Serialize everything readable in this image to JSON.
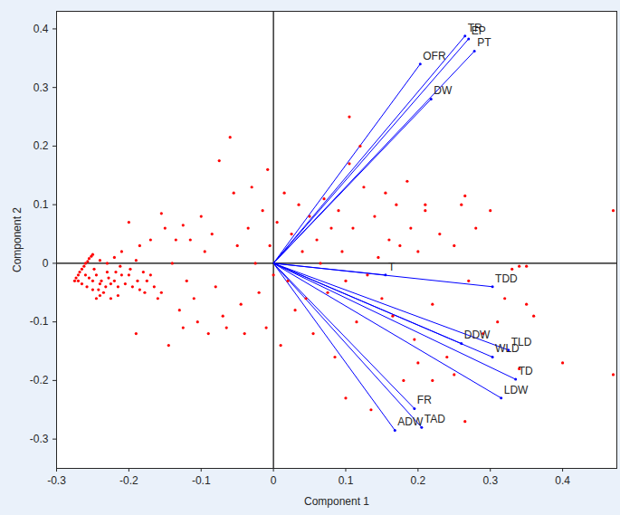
{
  "chart_data": {
    "type": "biplot",
    "xlabel": "Component 1",
    "ylabel": "Component 2",
    "xlim": [
      -0.3,
      0.475
    ],
    "ylim": [
      -0.35,
      0.43
    ],
    "xticks": [
      -0.3,
      -0.2,
      -0.1,
      0,
      0.1,
      0.2,
      0.3,
      0.4
    ],
    "yticks": [
      -0.3,
      -0.2,
      -0.1,
      0,
      0.1,
      0.2,
      0.3,
      0.4
    ],
    "grid": true,
    "points": {
      "color": "#ff0000",
      "x": [
        -0.275,
        -0.273,
        -0.27,
        -0.268,
        -0.265,
        -0.262,
        -0.26,
        -0.257,
        -0.255,
        -0.252,
        -0.25,
        -0.26,
        -0.255,
        -0.25,
        -0.245,
        -0.248,
        -0.24,
        -0.242,
        -0.235,
        -0.238,
        -0.232,
        -0.228,
        -0.225,
        -0.22,
        -0.218,
        -0.215,
        -0.212,
        -0.21,
        -0.205,
        -0.2,
        -0.198,
        -0.195,
        -0.19,
        -0.188,
        -0.185,
        -0.18,
        -0.178,
        -0.175,
        -0.17,
        -0.165,
        -0.245,
        -0.24,
        -0.225,
        -0.215,
        -0.23,
        -0.265,
        -0.27,
        -0.258,
        -0.25,
        -0.24,
        -0.23,
        -0.22,
        -0.21,
        -0.2,
        -0.19,
        -0.185,
        -0.17,
        -0.16,
        -0.135,
        -0.125,
        -0.125,
        -0.155,
        -0.15,
        -0.155,
        -0.145,
        -0.14,
        -0.13,
        -0.12,
        -0.115,
        -0.11,
        -0.105,
        -0.1,
        -0.095,
        -0.09,
        -0.085,
        -0.08,
        -0.075,
        -0.07,
        -0.065,
        -0.06,
        -0.055,
        -0.05,
        -0.045,
        -0.04,
        -0.035,
        -0.03,
        -0.025,
        -0.02,
        -0.015,
        -0.01,
        -0.008,
        -0.005,
        0.0,
        0.005,
        0.01,
        0.015,
        0.02,
        0.025,
        0.03,
        0.035,
        0.04,
        0.045,
        0.05,
        0.055,
        0.06,
        0.065,
        0.07,
        0.075,
        0.08,
        0.085,
        0.09,
        0.095,
        0.1,
        0.105,
        0.11,
        0.115,
        0.12,
        0.125,
        0.13,
        0.135,
        0.14,
        0.145,
        0.15,
        0.155,
        0.16,
        0.165,
        0.17,
        0.175,
        0.18,
        0.185,
        0.19,
        0.195,
        0.2,
        0.21,
        0.22,
        0.23,
        0.24,
        0.25,
        0.26,
        0.27,
        0.28,
        0.29,
        0.3,
        0.31,
        0.32,
        0.33,
        0.34,
        0.35,
        0.36,
        0.4,
        0.47,
        0.47,
        0.105,
        0.1,
        0.265,
        0.25,
        0.22,
        0.2,
        0.21,
        0.265,
        0.35,
        0.34
      ],
      "y": [
        -0.03,
        -0.025,
        -0.02,
        -0.015,
        -0.01,
        -0.005,
        0,
        0.003,
        0.008,
        0.012,
        0.015,
        -0.02,
        -0.025,
        -0.03,
        -0.02,
        -0.01,
        -0.035,
        -0.045,
        -0.05,
        -0.03,
        -0.04,
        -0.025,
        -0.035,
        -0.03,
        -0.015,
        -0.04,
        -0.005,
        -0.02,
        -0.035,
        -0.02,
        -0.01,
        -0.04,
        0.005,
        -0.03,
        -0.045,
        -0.015,
        -0.05,
        -0.03,
        -0.02,
        -0.04,
        -0.06,
        -0.055,
        -0.06,
        -0.055,
        -0.015,
        -0.035,
        -0.03,
        -0.04,
        -0.045,
        0.005,
        0.0,
        0.01,
        0.02,
        0.07,
        -0.12,
        0.03,
        0.04,
        -0.06,
        0.04,
        0.065,
        -0.11,
        0.085,
        0.06,
        -0.05,
        -0.14,
        0.0,
        -0.08,
        -0.03,
        0.04,
        -0.06,
        -0.1,
        0.08,
        0.02,
        -0.12,
        0.05,
        -0.04,
        0.175,
        -0.09,
        -0.11,
        0.215,
        0.12,
        0.03,
        -0.07,
        -0.12,
        0.06,
        0.13,
        0.0,
        -0.05,
        0.09,
        -0.11,
        0.16,
        0.03,
        -0.02,
        0.07,
        -0.14,
        0.12,
        -0.03,
        0.05,
        -0.08,
        0.1,
        0.02,
        -0.06,
        0.08,
        -0.12,
        0.04,
        0.0,
        0.11,
        -0.05,
        0.06,
        -0.16,
        0.09,
        0.02,
        -0.03,
        0.17,
        0.06,
        -0.1,
        0.2,
        0.13,
        -0.02,
        -0.25,
        0.08,
        0.01,
        -0.06,
        0.12,
        0.04,
        -0.09,
        0.1,
        0.03,
        -0.2,
        0.14,
        0.06,
        -0.13,
        0.02,
        0.09,
        -0.07,
        0.05,
        -0.16,
        0.03,
        0.1,
        -0.03,
        0.06,
        -0.12,
        0.09,
        -0.1,
        -0.06,
        -0.01,
        -0.18,
        -0.07,
        -0.09,
        -0.17,
        0.09,
        -0.19,
        0.25,
        -0.23,
        -0.27,
        -0.19,
        -0.2,
        -0.17,
        0.1,
        0.115,
        -0.005,
        -0.005
      ]
    },
    "vectors": {
      "color": "#0000ff",
      "labels": [
        "TR",
        "EP",
        "PT",
        "OFR",
        "DW",
        "T",
        "TDD",
        "TLD",
        "DDW",
        "WLD",
        "TD",
        "LDW",
        "FR",
        "TAD",
        "ADW"
      ],
      "x": [
        0.265,
        0.27,
        0.278,
        0.203,
        0.218,
        0.155,
        0.303,
        0.325,
        0.26,
        0.303,
        0.335,
        0.315,
        0.195,
        0.205,
        0.168
      ],
      "y": [
        0.388,
        0.383,
        0.362,
        0.34,
        0.28,
        -0.02,
        -0.04,
        -0.148,
        -0.137,
        -0.16,
        -0.198,
        -0.23,
        -0.248,
        -0.28,
        -0.285
      ]
    }
  }
}
